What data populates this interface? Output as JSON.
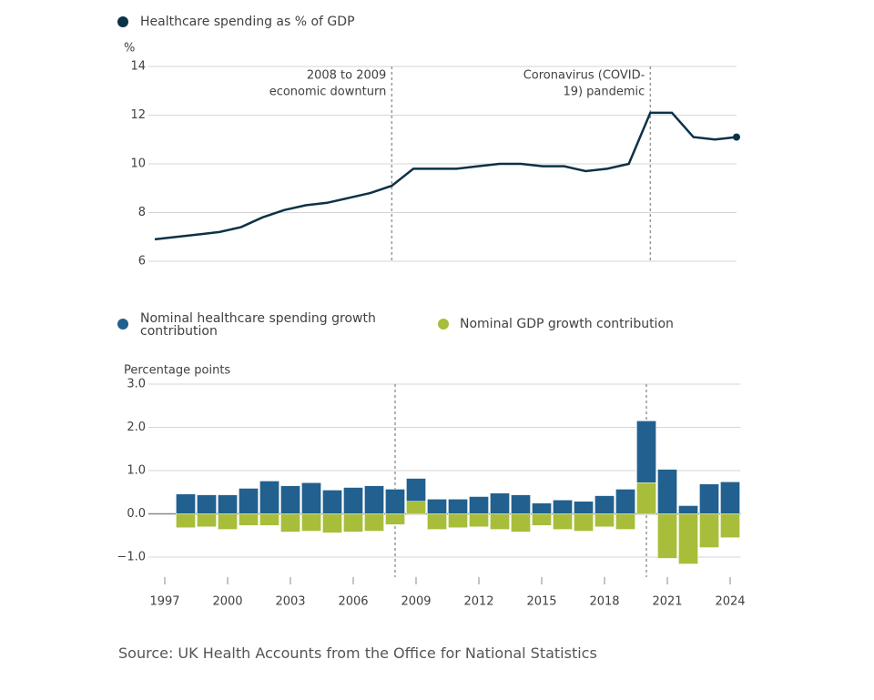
{
  "chart_data": [
    {
      "type": "line",
      "y_label": "%",
      "x": [
        1997,
        1998,
        1999,
        2000,
        2001,
        2002,
        2003,
        2004,
        2005,
        2006,
        2007,
        2008,
        2009,
        2010,
        2011,
        2012,
        2013,
        2014,
        2015,
        2016,
        2017,
        2018,
        2019,
        2020,
        2021,
        2022,
        2023,
        2024
      ],
      "series": [
        {
          "name": "Healthcare spending as % of GDP",
          "color": "#0b3247",
          "values": [
            6.9,
            7.0,
            7.1,
            7.2,
            7.4,
            7.8,
            8.1,
            8.3,
            8.4,
            8.6,
            8.8,
            9.1,
            9.8,
            9.8,
            9.8,
            9.9,
            10.0,
            10.0,
            9.9,
            9.9,
            9.7,
            9.8,
            10.0,
            12.1,
            12.1,
            11.1,
            11.0,
            11.1
          ]
        }
      ],
      "xlim": [
        1997,
        2024
      ],
      "ylim": [
        6,
        14
      ],
      "yticks": [
        6,
        8,
        10,
        12,
        14
      ],
      "grid": true,
      "annotations": [
        {
          "x": 2008,
          "label": [
            "2008 to 2009",
            "economic downturn"
          ]
        },
        {
          "x": 2020,
          "label": [
            "Coronavirus (COVID-",
            "19) pandemic"
          ]
        }
      ]
    },
    {
      "type": "bar",
      "stacked": true,
      "y_label": "Percentage points",
      "x": [
        1998,
        1999,
        2000,
        2001,
        2002,
        2003,
        2004,
        2005,
        2006,
        2007,
        2008,
        2009,
        2010,
        2011,
        2012,
        2013,
        2014,
        2015,
        2016,
        2017,
        2018,
        2019,
        2020,
        2021,
        2022,
        2023,
        2024
      ],
      "series": [
        {
          "name": "Nominal healthcare spending growth contribution",
          "color": "#22608f",
          "values": [
            0.46,
            0.44,
            0.44,
            0.59,
            0.76,
            0.65,
            0.72,
            0.55,
            0.61,
            0.65,
            0.57,
            0.53,
            0.34,
            0.34,
            0.4,
            0.48,
            0.44,
            0.25,
            0.32,
            0.29,
            0.42,
            0.57,
            1.43,
            1.03,
            0.19,
            0.69,
            0.74
          ]
        },
        {
          "name": "Nominal GDP growth contribution",
          "color": "#a8bd3a",
          "values": [
            -0.32,
            -0.3,
            -0.36,
            -0.27,
            -0.27,
            -0.42,
            -0.4,
            -0.44,
            -0.42,
            -0.4,
            -0.25,
            0.29,
            -0.36,
            -0.32,
            -0.3,
            -0.36,
            -0.42,
            -0.27,
            -0.36,
            -0.4,
            -0.3,
            -0.36,
            0.72,
            -1.03,
            -1.16,
            -0.78,
            -0.55
          ]
        }
      ],
      "xlim": [
        1996.5,
        2024.5
      ],
      "xticks": [
        1997,
        2000,
        2003,
        2006,
        2009,
        2012,
        2015,
        2018,
        2021,
        2024
      ],
      "ylim": [
        -1,
        3
      ],
      "yticks": [
        {
          "value": -1,
          "label": "−1.0"
        },
        {
          "value": 0,
          "label": "0.0"
        },
        {
          "value": 1,
          "label": "1.0"
        },
        {
          "value": 2,
          "label": "2.0"
        },
        {
          "value": 3,
          "label": "3.0"
        }
      ],
      "grid": true,
      "reference_lines": [
        2008,
        2020
      ]
    }
  ],
  "source": "Source: UK Health Accounts from the Office for National Statistics"
}
